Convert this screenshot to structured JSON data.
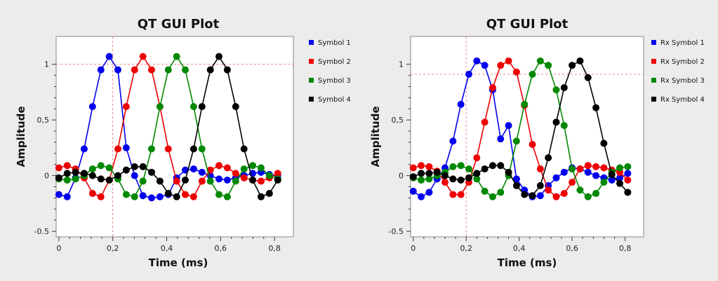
{
  "chart_data": [
    {
      "type": "line",
      "title": "QT GUI Plot",
      "xlabel": "Time (ms)",
      "ylabel": "Amplitude",
      "xlim": [
        -0.01,
        0.87
      ],
      "ylim": [
        -0.55,
        1.25
      ],
      "xticks": [
        0,
        0.2,
        0.4,
        0.6,
        0.8
      ],
      "xtick_labels": [
        "0",
        "0,2",
        "0,4",
        "0,6",
        "0,8"
      ],
      "yticks": [
        -0.5,
        0,
        0.5,
        1
      ],
      "ytick_labels": [
        "-0.5",
        "0",
        "0,5",
        "1"
      ],
      "grid": false,
      "marker_crosshair": {
        "x": 0.2,
        "y": 1.0
      },
      "legend_position": "right",
      "series": [
        {
          "name": "Symbol 1",
          "color": "#0000ee",
          "x": [
            0,
            0.031,
            0.062,
            0.094,
            0.125,
            0.156,
            0.187,
            0.219,
            0.25,
            0.281,
            0.312,
            0.344,
            0.375,
            0.406,
            0.437,
            0.469,
            0.5,
            0.531,
            0.562,
            0.594,
            0.625,
            0.656,
            0.687,
            0.719,
            0.75,
            0.781,
            0.812
          ],
          "y": [
            -0.17,
            -0.19,
            -0.02,
            0.24,
            0.62,
            0.95,
            1.07,
            0.95,
            0.25,
            0.0,
            -0.18,
            -0.2,
            -0.19,
            -0.17,
            -0.02,
            0.05,
            0.06,
            0.03,
            0.0,
            -0.03,
            -0.04,
            -0.02,
            0.0,
            0.02,
            0.03,
            0.01,
            0.0
          ]
        },
        {
          "name": "Symbol 2",
          "color": "#ee0000",
          "x": [
            0,
            0.031,
            0.062,
            0.094,
            0.125,
            0.156,
            0.187,
            0.219,
            0.25,
            0.281,
            0.312,
            0.344,
            0.375,
            0.406,
            0.437,
            0.469,
            0.5,
            0.531,
            0.562,
            0.594,
            0.625,
            0.656,
            0.687,
            0.719,
            0.75,
            0.781,
            0.812
          ],
          "y": [
            0.07,
            0.09,
            0.06,
            -0.02,
            -0.16,
            -0.19,
            -0.04,
            0.24,
            0.62,
            0.95,
            1.07,
            0.95,
            0.62,
            0.24,
            -0.05,
            -0.17,
            -0.19,
            -0.05,
            0.05,
            0.09,
            0.07,
            0.02,
            -0.02,
            -0.04,
            -0.05,
            -0.02,
            0.02
          ]
        },
        {
          "name": "Symbol 3",
          "color": "#008800",
          "x": [
            0,
            0.031,
            0.062,
            0.094,
            0.125,
            0.156,
            0.187,
            0.219,
            0.25,
            0.281,
            0.312,
            0.344,
            0.375,
            0.406,
            0.437,
            0.469,
            0.5,
            0.531,
            0.562,
            0.594,
            0.625,
            0.656,
            0.687,
            0.719,
            0.75,
            0.781,
            0.812
          ],
          "y": [
            -0.03,
            -0.04,
            -0.03,
            0.0,
            0.06,
            0.09,
            0.07,
            -0.03,
            -0.17,
            -0.19,
            -0.05,
            0.24,
            0.62,
            0.95,
            1.07,
            0.95,
            0.62,
            0.24,
            -0.05,
            -0.17,
            -0.19,
            -0.05,
            0.06,
            0.09,
            0.07,
            0.0,
            -0.03
          ]
        },
        {
          "name": "Symbol 4",
          "color": "#000000",
          "x": [
            0,
            0.031,
            0.062,
            0.094,
            0.125,
            0.156,
            0.187,
            0.219,
            0.25,
            0.281,
            0.312,
            0.344,
            0.375,
            0.406,
            0.437,
            0.469,
            0.5,
            0.531,
            0.562,
            0.594,
            0.625,
            0.656,
            0.687,
            0.719,
            0.75,
            0.781,
            0.812
          ],
          "y": [
            -0.02,
            0.02,
            0.03,
            0.02,
            0.0,
            -0.03,
            -0.04,
            0.0,
            0.05,
            0.08,
            0.08,
            0.03,
            -0.05,
            -0.16,
            -0.19,
            -0.04,
            0.24,
            0.62,
            0.95,
            1.07,
            0.95,
            0.62,
            0.24,
            -0.04,
            -0.19,
            -0.16,
            -0.04
          ]
        }
      ]
    },
    {
      "type": "line",
      "title": "QT GUI Plot",
      "xlabel": "Time (ms)",
      "ylabel": "Amplitude",
      "xlim": [
        -0.01,
        0.87
      ],
      "ylim": [
        -0.55,
        1.25
      ],
      "xticks": [
        0,
        0.2,
        0.4,
        0.6,
        0.8
      ],
      "xtick_labels": [
        "0",
        "0,2",
        "0,4",
        "0,6",
        "0,8"
      ],
      "yticks": [
        -0.5,
        0,
        0.5,
        1
      ],
      "ytick_labels": [
        "-0.5",
        "0",
        "0,5",
        "1"
      ],
      "grid": false,
      "marker_crosshair": {
        "x": 0.2,
        "y": 0.91
      },
      "legend_position": "right",
      "series": [
        {
          "name": "Rx Symbol 1",
          "color": "#0000ee",
          "x": [
            0,
            0.03,
            0.06,
            0.09,
            0.12,
            0.15,
            0.18,
            0.21,
            0.24,
            0.27,
            0.3,
            0.33,
            0.36,
            0.39,
            0.42,
            0.45,
            0.48,
            0.51,
            0.54,
            0.57,
            0.6,
            0.63,
            0.66,
            0.69,
            0.72,
            0.75,
            0.78,
            0.81
          ],
          "y": [
            -0.14,
            -0.19,
            -0.15,
            -0.03,
            0.07,
            0.31,
            0.64,
            0.91,
            1.03,
            0.99,
            0.77,
            0.33,
            0.45,
            -0.03,
            -0.13,
            -0.19,
            -0.18,
            -0.09,
            -0.02,
            0.03,
            0.07,
            0.06,
            0.03,
            0.0,
            -0.02,
            -0.04,
            -0.02,
            0.02
          ]
        },
        {
          "name": "Rx Symbol 2",
          "color": "#ee0000",
          "x": [
            0,
            0.03,
            0.06,
            0.09,
            0.12,
            0.15,
            0.18,
            0.21,
            0.24,
            0.27,
            0.3,
            0.33,
            0.36,
            0.39,
            0.42,
            0.45,
            0.48,
            0.51,
            0.54,
            0.57,
            0.6,
            0.63,
            0.66,
            0.69,
            0.72,
            0.75,
            0.78,
            0.81
          ],
          "y": [
            0.07,
            0.09,
            0.08,
            0.04,
            -0.06,
            -0.17,
            -0.17,
            -0.06,
            0.16,
            0.48,
            0.79,
            0.99,
            1.03,
            0.93,
            0.63,
            0.28,
            0.06,
            -0.13,
            -0.19,
            -0.16,
            -0.06,
            0.06,
            0.09,
            0.08,
            0.07,
            0.05,
            0.03,
            -0.04
          ]
        },
        {
          "name": "Rx Symbol 3",
          "color": "#008800",
          "x": [
            0,
            0.03,
            0.06,
            0.09,
            0.12,
            0.15,
            0.18,
            0.21,
            0.24,
            0.27,
            0.3,
            0.33,
            0.36,
            0.39,
            0.42,
            0.45,
            0.48,
            0.51,
            0.54,
            0.57,
            0.6,
            0.63,
            0.66,
            0.69,
            0.72,
            0.75,
            0.78,
            0.81
          ],
          "y": [
            -0.02,
            -0.04,
            -0.03,
            0.0,
            0.03,
            0.08,
            0.09,
            0.06,
            -0.03,
            -0.14,
            -0.19,
            -0.15,
            0.0,
            0.31,
            0.64,
            0.91,
            1.03,
            0.99,
            0.77,
            0.45,
            0.06,
            -0.13,
            -0.19,
            -0.16,
            -0.06,
            0.03,
            0.07,
            0.08
          ]
        },
        {
          "name": "Rx Symbol 4",
          "color": "#000000",
          "x": [
            0,
            0.03,
            0.06,
            0.09,
            0.12,
            0.15,
            0.18,
            0.21,
            0.24,
            0.27,
            0.3,
            0.33,
            0.36,
            0.39,
            0.42,
            0.45,
            0.48,
            0.51,
            0.54,
            0.57,
            0.6,
            0.63,
            0.66,
            0.69,
            0.72,
            0.75,
            0.78,
            0.81
          ],
          "y": [
            -0.01,
            0.02,
            0.02,
            0.03,
            0.0,
            -0.03,
            -0.04,
            -0.02,
            0.02,
            0.06,
            0.09,
            0.09,
            0.03,
            -0.09,
            -0.17,
            -0.18,
            -0.09,
            0.16,
            0.48,
            0.79,
            0.99,
            1.03,
            0.88,
            0.61,
            0.29,
            0.01,
            -0.07,
            -0.15
          ]
        }
      ]
    }
  ]
}
